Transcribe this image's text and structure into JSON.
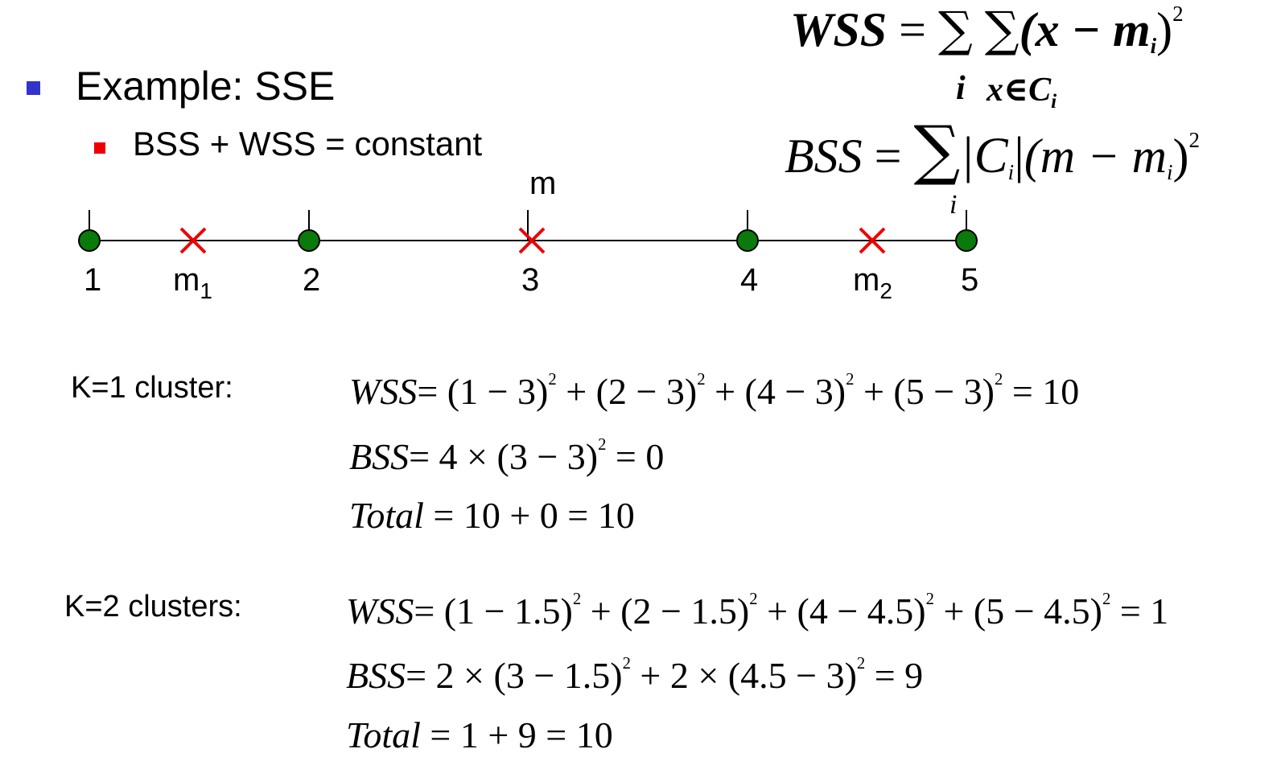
{
  "slide": {
    "bullet_color": "#3333cc",
    "sub_bullet_color": "#ee0000",
    "heading": "Example: SSE",
    "subpoint": "BSS + WSS = constant"
  },
  "formulas": {
    "wss_lhs": "WSS",
    "wss_eq": "=",
    "wss_sum1": "∑",
    "wss_sum2": "∑",
    "wss_body": "(x − m",
    "wss_sub": "i",
    "wss_close": ")",
    "wss_exp": "2",
    "wss_idx1": "i",
    "wss_idx2": "x∈C",
    "wss_idx2_sub": "i",
    "bss_lhs": "BSS",
    "bss_eq": "=",
    "bss_sum": "∑",
    "bss_idx": "i",
    "bss_c": "|C",
    "bss_c_sub": "i",
    "bss_c_bar": "|",
    "bss_body": "(m − m",
    "bss_sub": "i",
    "bss_close": ")",
    "bss_exp": "2"
  },
  "number_line": {
    "top_label": "m",
    "point_color": "#0a7a0a",
    "cross_color": "#ee0000",
    "labels": [
      "1",
      "2",
      "3",
      "4",
      "5"
    ],
    "m1_base": "m",
    "m1_sub": "1",
    "m2_base": "m",
    "m2_sub": "2"
  },
  "k1": {
    "label": "K=1 cluster:",
    "wss_lhs": "WSS",
    "wss_terms": [
      "= (1 − 3)",
      "2",
      " + (2 − 3)",
      "2",
      " + (4 − 3)",
      "2",
      " + (5 − 3)",
      "2",
      " = 10"
    ],
    "bss_lhs": "BSS",
    "bss_terms": [
      "= 4 × (3 − 3)",
      "2",
      " = 0"
    ],
    "total_lhs": "Total",
    "total_rhs": " = 10 + 0 = 10"
  },
  "k2": {
    "label": "K=2 clusters:",
    "wss_lhs": "WSS",
    "wss_terms": [
      "= (1 − 1.5)",
      "2",
      " + (2 − 1.5)",
      "2",
      " + (4 − 4.5)",
      "2",
      " + (5 − 4.5)",
      "2",
      " = 1"
    ],
    "bss_lhs": "BSS",
    "bss_terms": [
      "= 2 × (3 − 1.5)",
      "2",
      " + 2 × (4.5 − 3)",
      "2",
      " = 9"
    ],
    "total_lhs": "Total",
    "total_rhs": " = 1 + 9 = 10"
  }
}
